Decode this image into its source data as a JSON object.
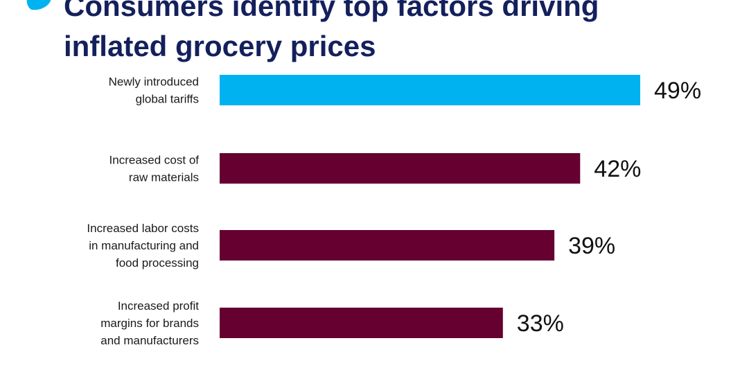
{
  "title_lines": [
    "Consumers identify top factors driving",
    "inflated grocery prices"
  ],
  "chart_data": {
    "type": "bar",
    "orientation": "horizontal",
    "categories": [
      [
        "Newly introduced",
        "global tariffs"
      ],
      [
        "Increased cost of",
        "raw materials"
      ],
      [
        "Increased labor costs",
        "in manufacturing and",
        "food processing"
      ],
      [
        "Increased profit",
        "margins for brands",
        "and manufacturers"
      ]
    ],
    "values": [
      49,
      42,
      39,
      33
    ],
    "value_labels": [
      "49%",
      "42%",
      "39%",
      "33%"
    ],
    "bar_colors": [
      "#00b2ef",
      "#650031",
      "#650031",
      "#650031"
    ],
    "xlim": [
      0,
      49
    ],
    "grid": false
  },
  "colors": {
    "title": "#14205c",
    "logo": "#00b2ef"
  },
  "icons": {
    "logo": "brand-logo-icon"
  }
}
